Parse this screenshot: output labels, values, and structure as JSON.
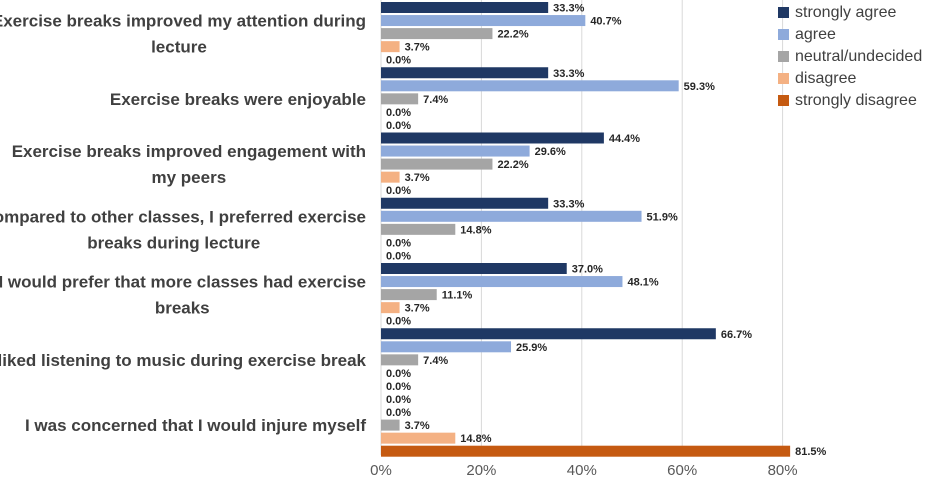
{
  "chart_data": {
    "type": "bar",
    "orientation": "horizontal",
    "title": "",
    "xlabel": "",
    "ylabel": "",
    "xlim": [
      0,
      0.9
    ],
    "x_ticks": [
      "0%",
      "20%",
      "40%",
      "60%",
      "80%"
    ],
    "tick_values": [
      0,
      0.2,
      0.4,
      0.6,
      0.8
    ],
    "grid": true,
    "legend_position": "top-right",
    "categories": [
      [
        "Exercise breaks improved my attention during",
        "lecture"
      ],
      [
        "Exercise breaks were enjoyable"
      ],
      [
        "Exercise breaks improved engagement with",
        "my peers"
      ],
      [
        "Compared to other classes, I preferred exercise",
        "breaks during lecture"
      ],
      [
        "I would prefer that more classes had exercise",
        "breaks"
      ],
      [
        "I liked listening to music during exercise break"
      ],
      [
        "I was concerned that I would injure myself"
      ]
    ],
    "series": [
      {
        "name": "strongly agree",
        "color": "#1f3864",
        "values": [
          0.333,
          0.333,
          0.444,
          0.333,
          0.37,
          0.667,
          0.0
        ],
        "labels": [
          "33.3%",
          "33.3%",
          "44.4%",
          "33.3%",
          "37.0%",
          "66.7%",
          "0.0%"
        ]
      },
      {
        "name": "agree",
        "color": "#8eaadb",
        "values": [
          0.407,
          0.593,
          0.296,
          0.519,
          0.481,
          0.259,
          0.0
        ],
        "labels": [
          "40.7%",
          "59.3%",
          "29.6%",
          "51.9%",
          "48.1%",
          "25.9%",
          "0.0%"
        ]
      },
      {
        "name": "neutral/undecided",
        "color": "#a5a5a5",
        "values": [
          0.222,
          0.074,
          0.222,
          0.148,
          0.111,
          0.074,
          0.037
        ],
        "labels": [
          "22.2%",
          "7.4%",
          "22.2%",
          "14.8%",
          "11.1%",
          "7.4%",
          "3.7%"
        ]
      },
      {
        "name": "disagree",
        "color": "#f4b183",
        "values": [
          0.037,
          0.0,
          0.037,
          0.0,
          0.037,
          0.0,
          0.148
        ],
        "labels": [
          "3.7%",
          "0.0%",
          "3.7%",
          "0.0%",
          "3.7%",
          "0.0%",
          "14.8%"
        ]
      },
      {
        "name": "strongly disagree",
        "color": "#c55a11",
        "values": [
          0.0,
          0.0,
          0.0,
          0.0,
          0.0,
          0.0,
          0.815
        ],
        "labels": [
          "0.0%",
          "0.0%",
          "0.0%",
          "0.0%",
          "0.0%",
          "0.0%",
          "81.5%"
        ]
      }
    ]
  }
}
